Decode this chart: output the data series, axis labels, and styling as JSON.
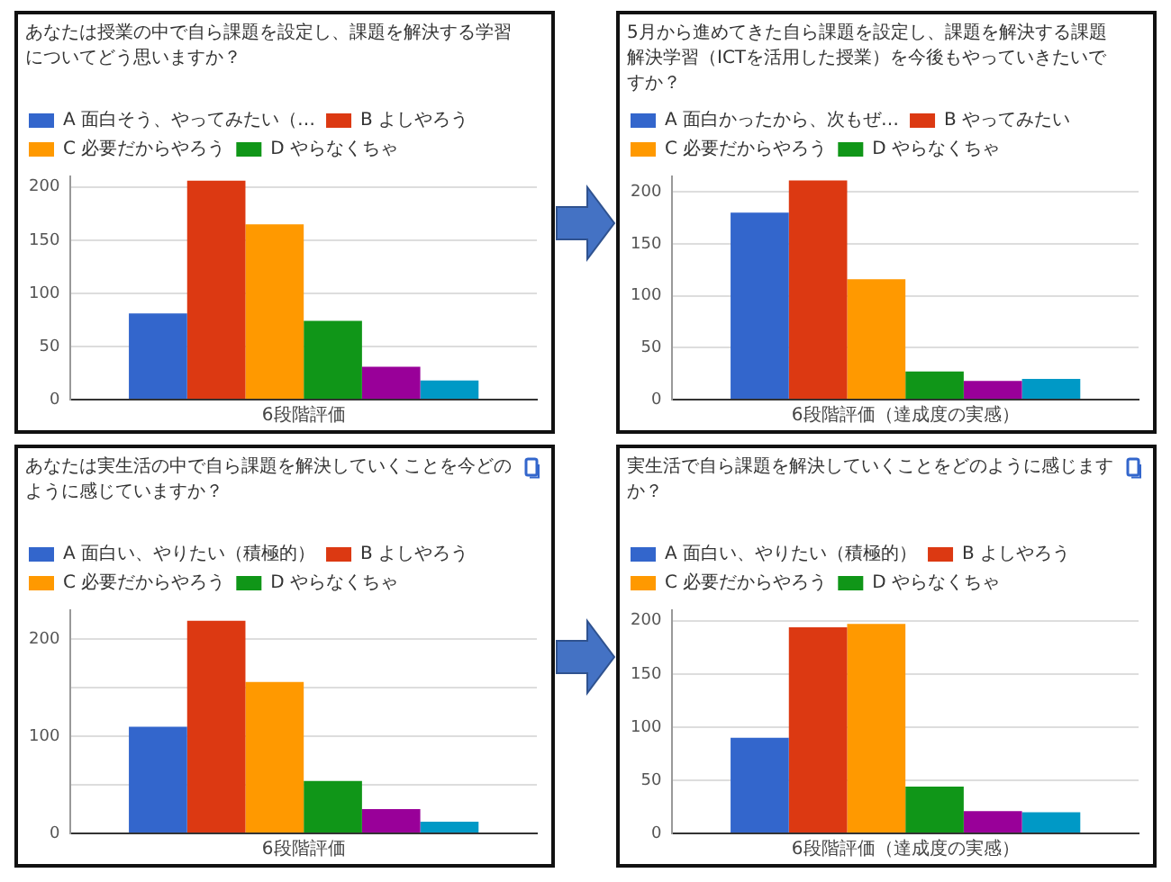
{
  "chart_data": [
    {
      "type": "bar",
      "title": "あなたは授業の中で自ら課題を設定し、課題を解決する学習についてどう思いますか？",
      "categories": [
        "6段階評価"
      ],
      "ylim": [
        0,
        210
      ],
      "yticks": [
        0,
        50,
        100,
        150,
        200
      ],
      "grid": "y",
      "legend": "top",
      "series": [
        {
          "name": "A 面白そう、やってみたい（…",
          "color": "#3366cc",
          "values": [
            81
          ]
        },
        {
          "name": "B よしやろう",
          "color": "#dc3912",
          "values": [
            206
          ]
        },
        {
          "name": "C 必要だからやろう",
          "color": "#ff9900",
          "values": [
            165
          ]
        },
        {
          "name": "D やらなくちゃ",
          "color": "#109618",
          "values": [
            74
          ]
        },
        {
          "color": "#990099",
          "values": [
            31
          ]
        },
        {
          "color": "#0099c6",
          "values": [
            18
          ]
        }
      ]
    },
    {
      "type": "bar",
      "title": "5月から進めてきた自ら課題を設定し、課題を解決する課題解決学習（ICTを活用した授業）を今後もやっていきたいですか？",
      "categories": [
        "6段階評価（達成度の実感）"
      ],
      "ylim": [
        0,
        215
      ],
      "yticks": [
        0,
        50,
        100,
        150,
        200
      ],
      "grid": "y",
      "legend": "top",
      "series": [
        {
          "name": "A 面白かったから、次もぜ…",
          "color": "#3366cc",
          "values": [
            180
          ]
        },
        {
          "name": "B やってみたい",
          "color": "#dc3912",
          "values": [
            211
          ]
        },
        {
          "name": "C 必要だからやろう",
          "color": "#ff9900",
          "values": [
            116
          ]
        },
        {
          "name": "D やらなくちゃ",
          "color": "#109618",
          "values": [
            27
          ]
        },
        {
          "color": "#990099",
          "values": [
            18
          ]
        },
        {
          "color": "#0099c6",
          "values": [
            20
          ]
        }
      ]
    },
    {
      "type": "bar",
      "title": "あなたは実生活の中で自ら課題を解決していくことを今どのように感じていますか？",
      "categories": [
        "6段階評価"
      ],
      "ylim": [
        0,
        230
      ],
      "yticks": [
        0,
        {
          "value": 50,
          "label": null
        },
        100,
        {
          "value": 150,
          "label": null
        },
        200
      ],
      "grid": "y",
      "legend": "top",
      "series": [
        {
          "name": "A 面白い、やりたい（積極的）",
          "color": "#3366cc",
          "values": [
            110
          ]
        },
        {
          "name": "B よしやろう",
          "color": "#dc3912",
          "values": [
            219
          ]
        },
        {
          "name": "C 必要だからやろう",
          "color": "#ff9900",
          "values": [
            156
          ]
        },
        {
          "name": "D やらなくちゃ",
          "color": "#109618",
          "values": [
            54
          ]
        },
        {
          "color": "#990099",
          "values": [
            25
          ]
        },
        {
          "color": "#0099c6",
          "values": [
            12
          ]
        }
      ]
    },
    {
      "type": "bar",
      "title": "実生活で自ら課題を解決していくことをどのように感じますか？",
      "categories": [
        "6段階評価（達成度の実感）"
      ],
      "ylim": [
        0,
        210
      ],
      "yticks": [
        0,
        50,
        100,
        150,
        200
      ],
      "grid": "y",
      "legend": "top",
      "series": [
        {
          "name": "A 面白い、やりたい（積極的）",
          "color": "#3366cc",
          "values": [
            90
          ]
        },
        {
          "name": "B よしやろう",
          "color": "#dc3912",
          "values": [
            194
          ]
        },
        {
          "name": "C 必要だからやろう",
          "color": "#ff9900",
          "values": [
            197
          ]
        },
        {
          "name": "D やらなくちゃ",
          "color": "#109618",
          "values": [
            44
          ]
        },
        {
          "color": "#990099",
          "values": [
            21
          ]
        },
        {
          "color": "#0099c6",
          "values": [
            20
          ]
        }
      ]
    }
  ]
}
